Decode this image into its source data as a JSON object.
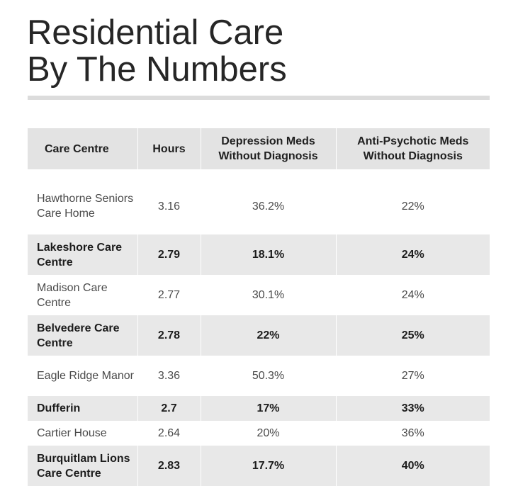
{
  "title": {
    "line1": "Residential Care",
    "line2": "By The Numbers"
  },
  "table": {
    "headers": {
      "centre": "Care Centre",
      "hours": "Hours",
      "depression_line1": "Depression Meds",
      "depression_line2": "Without Diagnosis",
      "antipsychotic_line1": "Anti-Psychotic Meds",
      "antipsychotic_line2": "Without Diagnosis"
    },
    "rows": [
      {
        "name": "Hawthorne Seniors Care Home",
        "hours": "3.16",
        "depression": "36.2%",
        "antipsychotic": "22%"
      },
      {
        "name": "Lakeshore Care Centre",
        "hours": "2.79",
        "depression": "18.1%",
        "antipsychotic": "24%"
      },
      {
        "name": "Madison Care Centre",
        "hours": "2.77",
        "depression": "30.1%",
        "antipsychotic": "24%"
      },
      {
        "name": "Belvedere Care Centre",
        "hours": "2.78",
        "depression": "22%",
        "antipsychotic": "25%"
      },
      {
        "name": "Eagle Ridge Manor",
        "hours": "3.36",
        "depression": "50.3%",
        "antipsychotic": "27%"
      },
      {
        "name": "Dufferin",
        "hours": "2.7",
        "depression": "17%",
        "antipsychotic": "33%"
      },
      {
        "name": "Cartier House",
        "hours": "2.64",
        "depression": "20%",
        "antipsychotic": "36%"
      },
      {
        "name": "Burquitlam Lions Care Centre",
        "hours": "2.83",
        "depression": "17.7%",
        "antipsychotic": "40%"
      }
    ]
  }
}
